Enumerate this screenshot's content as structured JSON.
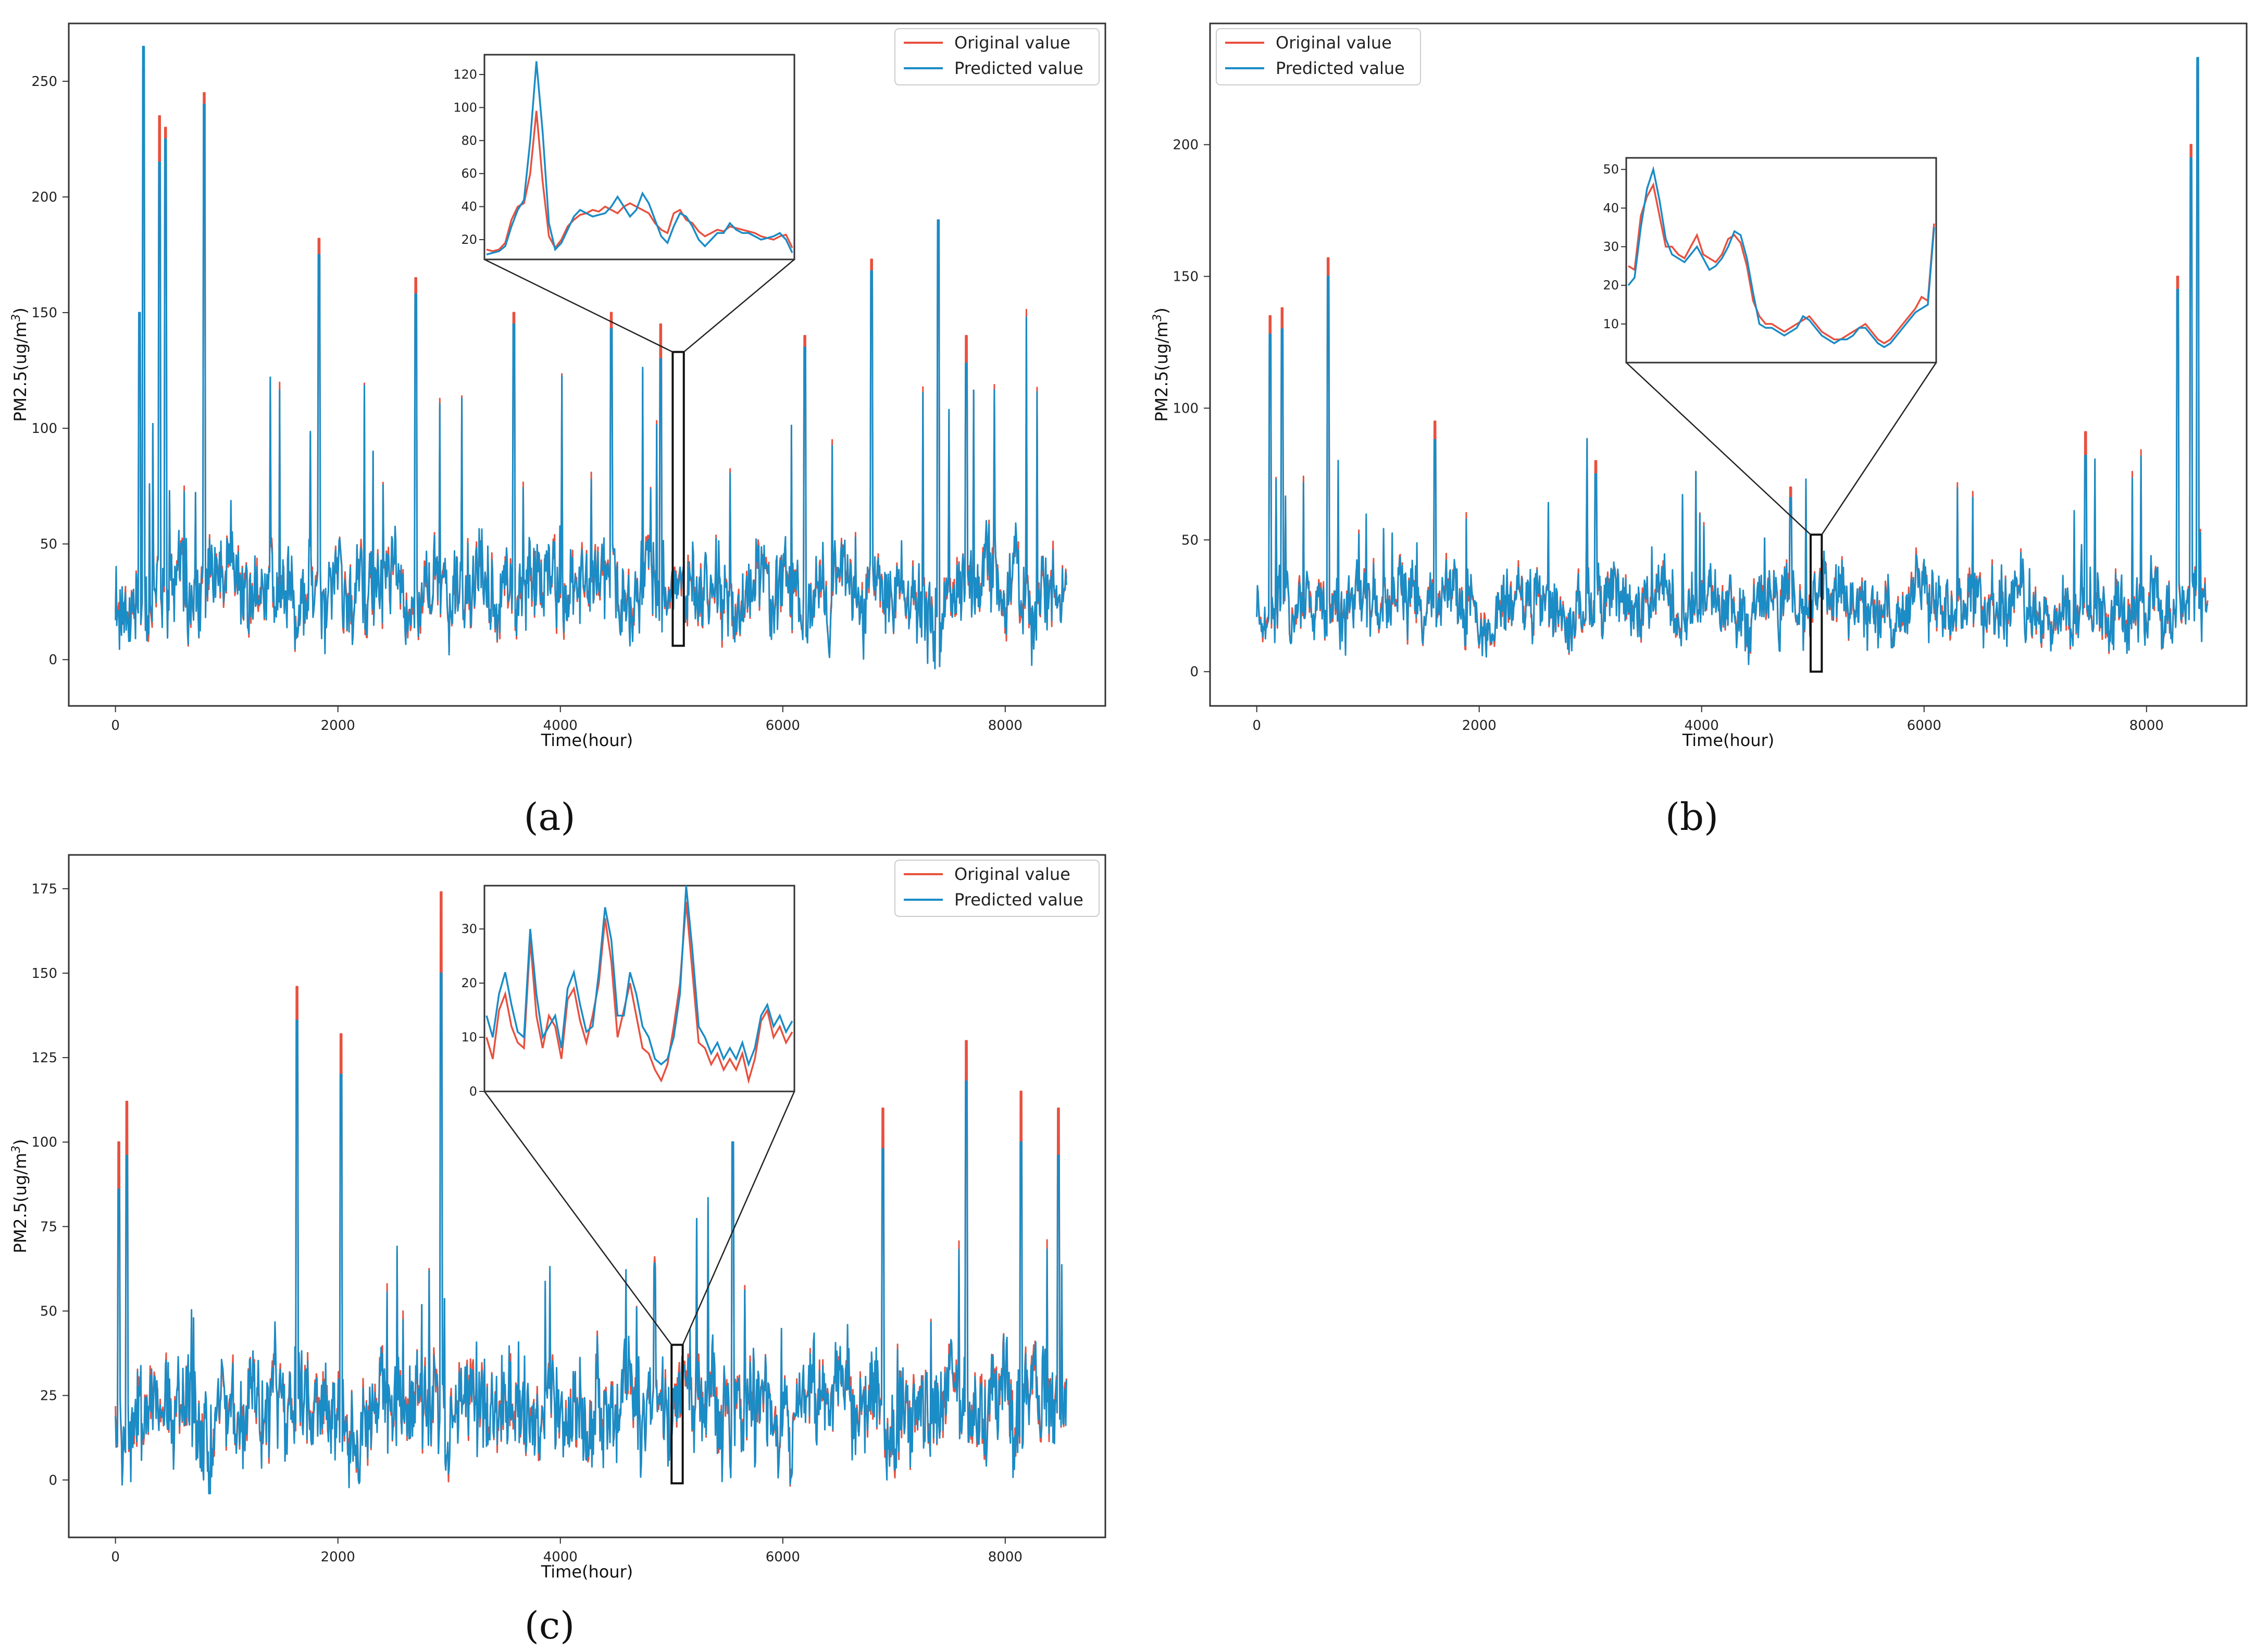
{
  "colors": {
    "original": "#e8513f",
    "predicted": "#1a8cc6",
    "frame": "#333333"
  },
  "chart_data": [
    {
      "id": "a",
      "type": "line",
      "caption": "(a)",
      "xlabel": "Time(hour)",
      "ylabel_main": "PM2.5(ug/m",
      "ylabel_sup": "3",
      "ylabel_end": ")",
      "xlim": [
        -420,
        8900
      ],
      "ylim": [
        -20,
        275
      ],
      "xticks": [
        "0",
        "2000",
        "4000",
        "6000",
        "8000"
      ],
      "yticks": [
        "0",
        "50",
        "100",
        "150",
        "200",
        "250"
      ],
      "legend": [
        "Original value",
        "Predicted value"
      ],
      "legend_position": "top-right",
      "series_profile": {
        "n": 8550,
        "base": 30,
        "amp": 20,
        "spike_rate": 0.028,
        "spike_max": 110,
        "floor": -6,
        "seed": 11
      },
      "spikes": [
        {
          "x": 215,
          "original": 140,
          "predicted": 150
        },
        {
          "x": 250,
          "original": 255,
          "predicted": 265
        },
        {
          "x": 395,
          "original": 235,
          "predicted": 215
        },
        {
          "x": 450,
          "original": 230,
          "predicted": 225
        },
        {
          "x": 800,
          "original": 245,
          "predicted": 240
        },
        {
          "x": 1830,
          "original": 182,
          "predicted": 175
        },
        {
          "x": 2700,
          "original": 165,
          "predicted": 158
        },
        {
          "x": 3580,
          "original": 150,
          "predicted": 145
        },
        {
          "x": 4460,
          "original": 150,
          "predicted": 143
        },
        {
          "x": 4900,
          "original": 145,
          "predicted": 130
        },
        {
          "x": 6200,
          "original": 140,
          "predicted": 135
        },
        {
          "x": 6800,
          "original": 173,
          "predicted": 168
        },
        {
          "x": 7400,
          "original": 190,
          "predicted": 190
        },
        {
          "x": 7650,
          "original": 140,
          "predicted": 128
        }
      ],
      "highlight": {
        "x0": 5010,
        "x1": 5110,
        "y0": 6,
        "y1": 133
      },
      "inset": {
        "ylim": [
          8,
          132
        ],
        "yticks": [
          20,
          40,
          60,
          80,
          100,
          120
        ],
        "original": [
          14,
          13,
          14,
          18,
          32,
          40,
          42,
          60,
          98,
          55,
          22,
          15,
          20,
          28,
          32,
          35,
          36,
          38,
          37,
          40,
          38,
          36,
          40,
          42,
          40,
          38,
          36,
          30,
          26,
          24,
          36,
          38,
          32,
          30,
          25,
          22,
          24,
          26,
          25,
          28,
          27,
          26,
          25,
          24,
          22,
          21,
          20,
          22,
          23,
          15
        ],
        "predicted": [
          11,
          12,
          13,
          16,
          28,
          38,
          44,
          80,
          128,
          85,
          30,
          14,
          18,
          26,
          34,
          38,
          36,
          34,
          35,
          36,
          40,
          46,
          40,
          34,
          38,
          48,
          42,
          32,
          22,
          18,
          28,
          36,
          34,
          28,
          20,
          16,
          20,
          24,
          24,
          30,
          26,
          24,
          24,
          22,
          20,
          21,
          22,
          24,
          20,
          12
        ]
      }
    },
    {
      "id": "b",
      "type": "line",
      "caption": "(b)",
      "xlabel": "Time(hour)",
      "ylabel_main": "PM2.5(ug/m",
      "ylabel_sup": "3",
      "ylabel_end": ")",
      "xlim": [
        -420,
        8900
      ],
      "ylim": [
        -13,
        246
      ],
      "xticks": [
        "0",
        "2000",
        "4000",
        "6000",
        "8000"
      ],
      "yticks": [
        "0",
        "50",
        "100",
        "150",
        "200"
      ],
      "legend": [
        "Original value",
        "Predicted value"
      ],
      "legend_position": "top-left",
      "series_profile": {
        "n": 8550,
        "base": 26,
        "amp": 14,
        "spike_rate": 0.022,
        "spike_max": 55,
        "floor": -2,
        "seed": 23
      },
      "spikes": [
        {
          "x": 120,
          "original": 135,
          "predicted": 128
        },
        {
          "x": 230,
          "original": 138,
          "predicted": 130
        },
        {
          "x": 640,
          "original": 157,
          "predicted": 150
        },
        {
          "x": 1600,
          "original": 95,
          "predicted": 88
        },
        {
          "x": 3050,
          "original": 80,
          "predicted": 75
        },
        {
          "x": 4800,
          "original": 70,
          "predicted": 66
        },
        {
          "x": 7450,
          "original": 91,
          "predicted": 82
        },
        {
          "x": 8280,
          "original": 150,
          "predicted": 145
        },
        {
          "x": 8400,
          "original": 200,
          "predicted": 195
        },
        {
          "x": 8460,
          "original": 230,
          "predicted": 233
        }
      ],
      "highlight": {
        "x0": 4980,
        "x1": 5080,
        "y0": 0,
        "y1": 52
      },
      "inset": {
        "ylim": [
          0,
          53
        ],
        "yticks": [
          10,
          20,
          30,
          40,
          50
        ],
        "original": [
          25,
          24,
          38,
          43,
          46,
          38,
          30,
          30,
          28,
          27,
          30,
          33,
          28,
          27,
          26,
          28,
          32,
          33,
          31,
          25,
          16,
          12,
          10,
          10,
          9,
          8,
          9,
          10,
          11,
          12,
          10,
          8,
          7,
          6,
          6,
          7,
          8,
          9,
          10,
          8,
          6,
          5,
          6,
          8,
          10,
          12,
          14,
          17,
          16,
          36
        ],
        "predicted": [
          20,
          22,
          35,
          45,
          50,
          42,
          32,
          28,
          27,
          26,
          28,
          30,
          27,
          24,
          25,
          27,
          30,
          34,
          33,
          27,
          18,
          10,
          9,
          9,
          8,
          7,
          8,
          9,
          12,
          11,
          9,
          7,
          6,
          5,
          6,
          6,
          7,
          9,
          9,
          7,
          5,
          4,
          5,
          7,
          9,
          11,
          13,
          14,
          15,
          35
        ]
      }
    },
    {
      "id": "c",
      "type": "line",
      "caption": "(c)",
      "xlabel": "Time(hour)",
      "ylabel_main": "PM2.5(ug/m",
      "ylabel_sup": "3",
      "ylabel_end": ")",
      "xlim": [
        -420,
        8900
      ],
      "ylim": [
        -17,
        185
      ],
      "xticks": [
        "0",
        "2000",
        "4000",
        "6000",
        "8000"
      ],
      "yticks": [
        "0",
        "25",
        "50",
        "75",
        "100",
        "125",
        "150",
        "175"
      ],
      "legend": [
        "Original value",
        "Predicted value"
      ],
      "legend_position": "top-right",
      "series_profile": {
        "n": 8550,
        "base": 22,
        "amp": 16,
        "spike_rate": 0.03,
        "spike_max": 48,
        "floor": -6,
        "seed": 37
      },
      "spikes": [
        {
          "x": 30,
          "original": 100,
          "predicted": 86
        },
        {
          "x": 100,
          "original": 112,
          "predicted": 96
        },
        {
          "x": 1630,
          "original": 146,
          "predicted": 136
        },
        {
          "x": 2030,
          "original": 132,
          "predicted": 120
        },
        {
          "x": 2930,
          "original": 174,
          "predicted": 150
        },
        {
          "x": 4850,
          "original": 63,
          "predicted": 60
        },
        {
          "x": 5550,
          "original": 100,
          "predicted": 100
        },
        {
          "x": 6900,
          "original": 110,
          "predicted": 98
        },
        {
          "x": 7650,
          "original": 130,
          "predicted": 118
        },
        {
          "x": 8140,
          "original": 115,
          "predicted": 100
        },
        {
          "x": 8480,
          "original": 110,
          "predicted": 96
        }
      ],
      "highlight": {
        "x0": 5000,
        "x1": 5100,
        "y0": -1,
        "y1": 40
      },
      "inset": {
        "ylim": [
          0,
          38
        ],
        "yticks": [
          0,
          10,
          20,
          30
        ],
        "original": [
          10,
          6,
          15,
          18,
          12,
          9,
          8,
          28,
          14,
          8,
          14,
          12,
          6,
          17,
          19,
          13,
          9,
          14,
          20,
          32,
          24,
          10,
          15,
          20,
          14,
          8,
          7,
          4,
          2,
          5,
          12,
          20,
          35,
          22,
          9,
          8,
          5,
          7,
          4,
          6,
          4,
          7,
          2,
          6,
          13,
          15,
          10,
          12,
          9,
          11
        ],
        "predicted": [
          14,
          10,
          18,
          22,
          16,
          11,
          10,
          30,
          18,
          10,
          12,
          14,
          8,
          19,
          22,
          16,
          11,
          12,
          22,
          34,
          28,
          14,
          14,
          22,
          18,
          12,
          10,
          6,
          5,
          6,
          10,
          18,
          38,
          26,
          12,
          10,
          7,
          9,
          6,
          8,
          6,
          9,
          5,
          8,
          14,
          16,
          12,
          14,
          11,
          13
        ]
      }
    }
  ]
}
